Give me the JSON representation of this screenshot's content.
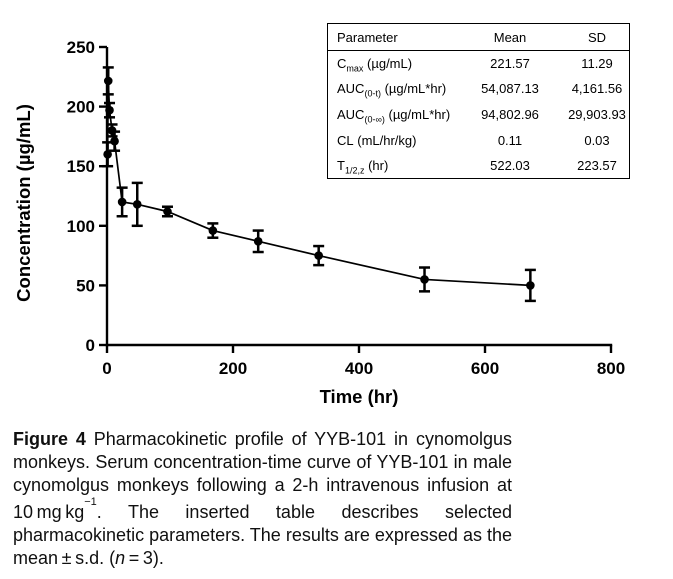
{
  "figure": {
    "caption": {
      "label": "Figure 4",
      "text1": " Pharmacokinetic profile of YYB-101 in cynomolgus monkeys. Serum concentration-time curve of YYB-101 in male cynomolgus monkeys following a 2-h intravenous infusion at 10 mg kg",
      "sup1": "−1",
      "text2": ". The inserted table describes selected pharmacokinetic parameters. The results are expressed as the mean ± s.d. (",
      "n_italic": "n",
      "text3": " = 3)."
    }
  },
  "inset_table": {
    "headers": [
      "Parameter",
      "Mean",
      "SD"
    ],
    "rows": [
      {
        "base": "C",
        "sub": "max",
        "rest": " (µg/mL)",
        "mean": "221.57",
        "sd": "11.29"
      },
      {
        "base": "AUC",
        "sub": "(0-t)",
        "rest": " (µg/mL*hr)",
        "mean": "54,087.13",
        "sd": "4,161.56"
      },
      {
        "base": "AUC",
        "sub": "(0-∞)",
        "rest": " (µg/mL*hr)",
        "mean": "94,802.96",
        "sd": "29,903.93"
      },
      {
        "base": "CL",
        "sub": "",
        "rest": " (mL/hr/kg)",
        "mean": "0.11",
        "sd": "0.03"
      },
      {
        "base": "T",
        "sub": "1/2,z",
        "rest": " (hr)",
        "mean": "522.03",
        "sd": "223.57"
      }
    ]
  },
  "chart_data": {
    "type": "line",
    "title": "",
    "xlabel": "Time (hr)",
    "ylabel": "Concentration (µg/mL)",
    "xlim": [
      0,
      800
    ],
    "ylim": [
      0,
      250
    ],
    "xticks": [
      0,
      200,
      400,
      600,
      800
    ],
    "yticks": [
      0,
      50,
      100,
      150,
      200,
      250
    ],
    "grid": false,
    "legend": false,
    "marker": "filled-circle",
    "error_bars": "sd",
    "line_color": "#000000",
    "series": [
      {
        "x": [
          1,
          2,
          4,
          8,
          12,
          24,
          48,
          96,
          168,
          240,
          336,
          504,
          672
        ],
        "y": [
          160,
          221.57,
          197,
          180,
          171,
          120,
          118,
          112,
          96,
          87,
          75,
          55,
          50
        ],
        "sd": [
          10,
          11.29,
          6,
          5,
          8,
          12,
          18,
          4,
          6,
          9,
          8,
          10,
          13
        ]
      }
    ]
  }
}
